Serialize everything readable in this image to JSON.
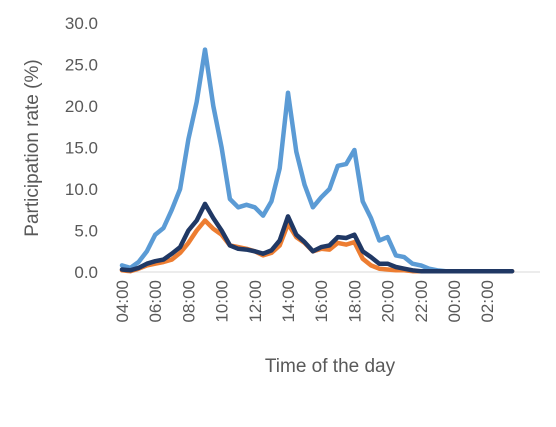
{
  "chart_data": {
    "type": "line",
    "title": "",
    "xlabel": "Time of the day",
    "ylabel": "Participation rate (%)",
    "ylim": [
      0,
      30
    ],
    "y_ticks": [
      "0.0",
      "5.0",
      "10.0",
      "15.0",
      "20.0",
      "25.0",
      "30.0"
    ],
    "x_tick_labels": [
      "04:00",
      "06:00",
      "08:00",
      "10:00",
      "12:00",
      "14:00",
      "16:00",
      "18:00",
      "20:00",
      "22:00",
      "00:00",
      "02:00"
    ],
    "grid": false,
    "legend": "none",
    "x": [
      "04:00",
      "04:30",
      "05:00",
      "05:30",
      "06:00",
      "06:30",
      "07:00",
      "07:30",
      "08:00",
      "08:30",
      "09:00",
      "09:30",
      "10:00",
      "10:30",
      "11:00",
      "11:30",
      "12:00",
      "12:30",
      "13:00",
      "13:30",
      "14:00",
      "14:30",
      "15:00",
      "15:30",
      "16:00",
      "16:30",
      "17:00",
      "17:30",
      "18:00",
      "18:30",
      "19:00",
      "19:30",
      "20:00",
      "20:30",
      "21:00",
      "21:30",
      "22:00",
      "22:30",
      "23:00",
      "23:30",
      "00:00",
      "00:30",
      "01:00",
      "01:30",
      "02:00",
      "02:30",
      "03:00",
      "03:30"
    ],
    "series": [
      {
        "color": "#5b9bd5",
        "values": [
          0.8,
          0.5,
          1.2,
          2.5,
          4.5,
          5.3,
          7.5,
          10.0,
          16.0,
          20.5,
          26.8,
          20.0,
          15.0,
          8.8,
          7.8,
          8.1,
          7.8,
          6.8,
          8.5,
          12.5,
          21.6,
          14.5,
          10.5,
          7.8,
          9.0,
          10.0,
          12.8,
          13.0,
          14.7,
          8.5,
          6.5,
          3.8,
          4.2,
          2.0,
          1.8,
          1.0,
          0.8,
          0.4,
          0.2,
          0.1,
          0.1,
          0.1,
          0.1,
          0.1,
          0.1,
          0.1,
          0.1,
          0.1
        ]
      },
      {
        "color": "#ed7d31",
        "values": [
          0.2,
          0.1,
          0.4,
          0.8,
          1.0,
          1.2,
          1.5,
          2.3,
          3.5,
          5.0,
          6.2,
          5.2,
          4.5,
          3.2,
          3.0,
          2.8,
          2.5,
          2.0,
          2.3,
          3.2,
          5.8,
          4.2,
          3.5,
          2.5,
          2.8,
          2.7,
          3.5,
          3.3,
          3.6,
          1.6,
          0.8,
          0.4,
          0.3,
          0.2,
          0.2,
          0.1,
          0.1,
          0.1,
          0.1,
          0.1,
          0.1,
          0.1,
          0.1,
          0.1,
          0.1,
          0.1,
          0.1,
          0.1
        ]
      },
      {
        "color": "#203864",
        "values": [
          0.3,
          0.2,
          0.5,
          1.0,
          1.3,
          1.5,
          2.2,
          3.0,
          5.0,
          6.2,
          8.2,
          6.5,
          5.0,
          3.2,
          2.8,
          2.7,
          2.5,
          2.2,
          2.6,
          3.8,
          6.7,
          4.5,
          3.6,
          2.5,
          3.0,
          3.2,
          4.2,
          4.1,
          4.5,
          2.5,
          1.8,
          1.0,
          1.0,
          0.6,
          0.4,
          0.2,
          0.1,
          0.1,
          0.1,
          0.1,
          0.1,
          0.1,
          0.1,
          0.1,
          0.1,
          0.1,
          0.1,
          0.1
        ]
      }
    ]
  }
}
